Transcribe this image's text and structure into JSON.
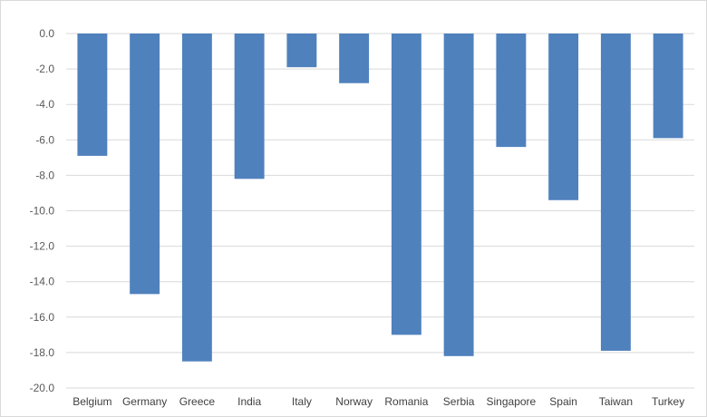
{
  "chart_data": {
    "type": "bar",
    "title": "",
    "xlabel": "",
    "ylabel": "",
    "categories": [
      "Belgium",
      "Germany",
      "Greece",
      "India",
      "Italy",
      "Norway",
      "Romania",
      "Serbia",
      "Singapore",
      "Spain",
      "Taiwan",
      "Turkey"
    ],
    "values": [
      -6.9,
      -14.7,
      -18.5,
      -8.2,
      -1.9,
      -2.8,
      -17.0,
      -18.2,
      -6.4,
      -9.4,
      -17.9,
      -5.9
    ],
    "ylim": [
      -20.0,
      0.0
    ],
    "yticks": [
      "0.0",
      "-2.0",
      "-4.0",
      "-6.0",
      "-8.0",
      "-10.0",
      "-12.0",
      "-14.0",
      "-16.0",
      "-18.0",
      "-20.0"
    ],
    "grid": true,
    "legend": "none",
    "colors": {
      "bar": "#4f81bd",
      "grid": "#d9d9d9",
      "frame": "#d9d9d9"
    }
  }
}
